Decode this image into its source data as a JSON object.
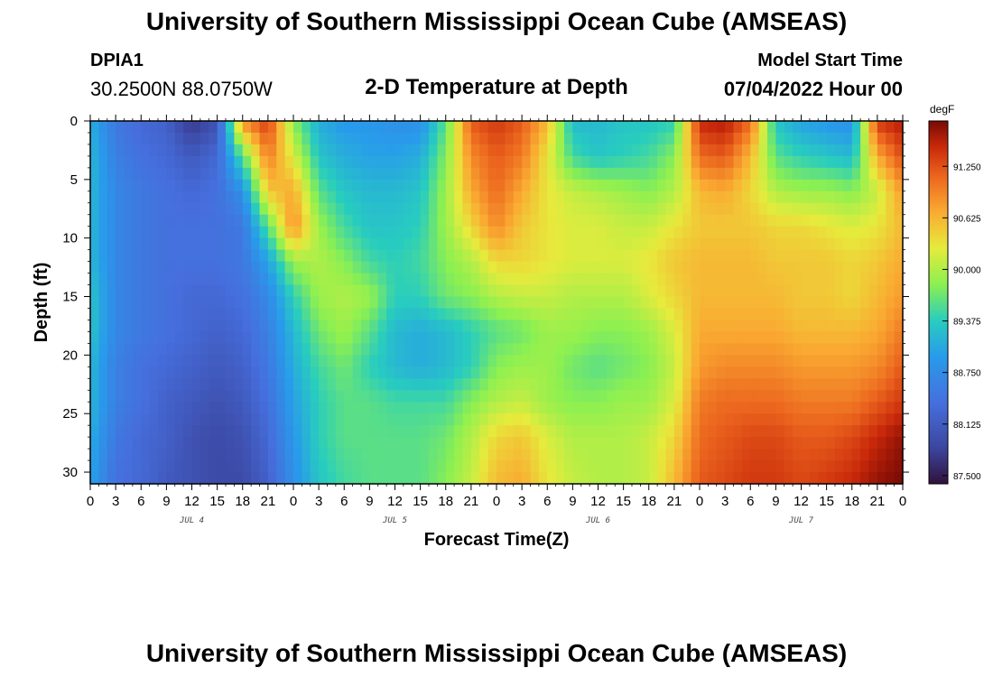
{
  "header": {
    "title": "University of Southern Mississippi Ocean Cube (AMSEAS)",
    "station_id": "DPIA1",
    "station_coords": "30.2500N  88.0750W",
    "plot_title": "2-D Temperature at Depth",
    "model_label": "Model Start Time",
    "model_date": "07/04/2022 Hour 00"
  },
  "footer": {
    "title": "University of Southern Mississippi Ocean Cube (AMSEAS)"
  },
  "chart_data": {
    "type": "heatmap",
    "title": "2-D Temperature at Depth",
    "xlabel": "Forecast Time(Z)",
    "ylabel": "Depth (ft)",
    "x_range_hours": [
      0,
      96
    ],
    "y_range_ft": [
      0,
      31
    ],
    "x_ticks_hours": [
      0,
      3,
      6,
      9,
      12,
      15,
      18,
      21,
      24,
      27,
      30,
      33,
      36,
      39,
      42,
      45,
      48,
      51,
      54,
      57,
      60,
      63,
      66,
      69,
      72,
      75,
      78,
      81,
      84,
      87,
      90,
      93,
      96
    ],
    "x_tick_labels": [
      "0",
      "3",
      "6",
      "9",
      "12",
      "15",
      "18",
      "21",
      "0",
      "3",
      "6",
      "9",
      "12",
      "15",
      "18",
      "21",
      "0",
      "3",
      "6",
      "9",
      "12",
      "15",
      "18",
      "21",
      "0",
      "3",
      "6",
      "9",
      "12",
      "15",
      "18",
      "21",
      "0"
    ],
    "y_ticks": [
      0,
      5,
      10,
      15,
      20,
      25,
      30
    ],
    "y_tick_labels": [
      "0",
      "5",
      "10",
      "15",
      "20",
      "25",
      "30"
    ],
    "day_labels": [
      {
        "label": "JUL 4",
        "hour": 12
      },
      {
        "label": "JUL 5",
        "hour": 36
      },
      {
        "label": "JUL 6",
        "hour": 60
      },
      {
        "label": "JUL 7",
        "hour": 84
      }
    ],
    "colorbar": {
      "unit": "degF",
      "min": 87.4,
      "max": 91.8,
      "ticks": [
        91.25,
        90.625,
        90.0,
        89.375,
        88.75,
        88.125,
        87.5
      ],
      "tick_labels": [
        "91.250",
        "90.625",
        "90.000",
        "89.375",
        "88.750",
        "88.125",
        "87.500"
      ]
    },
    "grid_times_hours": [
      0,
      3,
      6,
      9,
      12,
      15,
      18,
      21,
      24,
      27,
      30,
      33,
      36,
      39,
      42,
      45,
      48,
      51,
      54,
      57,
      60,
      63,
      66,
      69,
      72,
      75,
      78,
      81,
      84,
      87,
      90,
      93,
      96
    ],
    "grid_depths_ft": [
      0,
      3,
      6,
      9,
      12,
      15,
      18,
      21,
      24,
      27,
      31
    ],
    "values_degF": [
      [
        89.1,
        88.5,
        88.3,
        88.2,
        87.7,
        88.0,
        90.9,
        91.4,
        89.8,
        89.1,
        88.9,
        88.9,
        88.8,
        88.8,
        89.6,
        91.2,
        91.4,
        91.2,
        90.6,
        89.2,
        89.2,
        89.3,
        89.3,
        89.4,
        91.5,
        91.6,
        91.1,
        89.3,
        89.0,
        88.9,
        88.8,
        91.4,
        91.6
      ],
      [
        89.2,
        88.6,
        88.4,
        88.3,
        88.1,
        88.3,
        89.6,
        91.0,
        90.2,
        89.3,
        89.1,
        89.0,
        89.0,
        89.1,
        89.8,
        90.9,
        91.2,
        91.0,
        90.3,
        89.5,
        89.3,
        89.4,
        89.5,
        89.8,
        91.1,
        91.2,
        90.6,
        89.6,
        89.4,
        89.3,
        89.2,
        90.7,
        91.3
      ],
      [
        89.2,
        88.7,
        88.5,
        88.4,
        88.3,
        88.4,
        88.8,
        90.5,
        90.7,
        89.6,
        89.3,
        89.2,
        89.2,
        89.3,
        89.9,
        90.7,
        91.1,
        90.7,
        90.3,
        90.1,
        90.0,
        89.9,
        89.8,
        90.0,
        90.6,
        90.7,
        90.4,
        90.0,
        89.9,
        89.9,
        89.8,
        90.1,
        90.8
      ],
      [
        89.2,
        88.7,
        88.5,
        88.4,
        88.4,
        88.4,
        88.5,
        89.6,
        90.9,
        89.9,
        89.5,
        89.3,
        89.3,
        89.4,
        89.9,
        90.4,
        90.9,
        90.5,
        90.3,
        90.2,
        90.2,
        90.1,
        90.1,
        90.3,
        90.5,
        90.5,
        90.5,
        90.4,
        90.4,
        90.3,
        90.2,
        90.3,
        90.6
      ],
      [
        89.2,
        88.7,
        88.5,
        88.4,
        88.4,
        88.4,
        88.5,
        89.0,
        89.9,
        90.0,
        89.8,
        89.5,
        89.4,
        89.5,
        89.8,
        90.0,
        90.4,
        90.4,
        90.3,
        90.2,
        90.2,
        90.2,
        90.3,
        90.5,
        90.6,
        90.6,
        90.6,
        90.5,
        90.5,
        90.5,
        90.4,
        90.5,
        90.7
      ],
      [
        89.3,
        88.7,
        88.5,
        88.4,
        88.3,
        88.3,
        88.4,
        88.7,
        89.4,
        89.9,
        90.0,
        89.9,
        89.4,
        89.4,
        89.7,
        89.8,
        90.0,
        90.1,
        90.1,
        90.0,
        90.0,
        90.0,
        90.2,
        90.4,
        90.6,
        90.6,
        90.6,
        90.6,
        90.5,
        90.5,
        90.4,
        90.6,
        90.8
      ],
      [
        89.3,
        88.7,
        88.5,
        88.4,
        88.3,
        88.2,
        88.3,
        88.6,
        89.2,
        89.7,
        89.9,
        89.6,
        89.2,
        89.1,
        89.2,
        89.4,
        89.6,
        89.7,
        89.9,
        89.9,
        89.8,
        89.8,
        89.9,
        90.2,
        90.7,
        90.7,
        90.7,
        90.7,
        90.6,
        90.6,
        90.6,
        90.7,
        91.0
      ],
      [
        89.2,
        88.6,
        88.4,
        88.3,
        88.2,
        88.1,
        88.2,
        88.5,
        89.1,
        89.5,
        89.7,
        89.4,
        89.2,
        89.1,
        89.2,
        89.4,
        89.8,
        89.9,
        89.9,
        89.7,
        89.6,
        89.7,
        89.8,
        90.1,
        90.8,
        90.9,
        90.9,
        90.9,
        90.8,
        90.8,
        90.8,
        90.9,
        91.2
      ],
      [
        89.2,
        88.6,
        88.4,
        88.2,
        88.1,
        88.0,
        88.1,
        88.4,
        89.0,
        89.4,
        89.6,
        89.6,
        89.5,
        89.5,
        89.5,
        89.8,
        90.0,
        90.1,
        89.9,
        89.8,
        89.8,
        89.9,
        89.9,
        90.2,
        91.0,
        91.1,
        91.1,
        91.1,
        91.0,
        91.0,
        91.0,
        91.2,
        91.4
      ],
      [
        89.1,
        88.5,
        88.3,
        88.2,
        88.0,
        87.9,
        88.0,
        88.3,
        88.9,
        89.4,
        89.6,
        89.6,
        89.6,
        89.6,
        89.7,
        90.0,
        90.4,
        90.5,
        90.2,
        90.0,
        90.0,
        90.0,
        90.1,
        90.4,
        91.1,
        91.2,
        91.3,
        91.3,
        91.2,
        91.2,
        91.3,
        91.5,
        91.7
      ],
      [
        89.0,
        88.4,
        88.3,
        88.1,
        88.0,
        87.9,
        87.9,
        88.2,
        88.8,
        89.3,
        89.5,
        89.6,
        89.6,
        89.6,
        89.8,
        90.1,
        90.6,
        90.7,
        90.3,
        90.1,
        90.0,
        90.0,
        90.1,
        90.6,
        91.2,
        91.3,
        91.4,
        91.4,
        91.3,
        91.4,
        91.5,
        91.7,
        91.8
      ]
    ]
  }
}
